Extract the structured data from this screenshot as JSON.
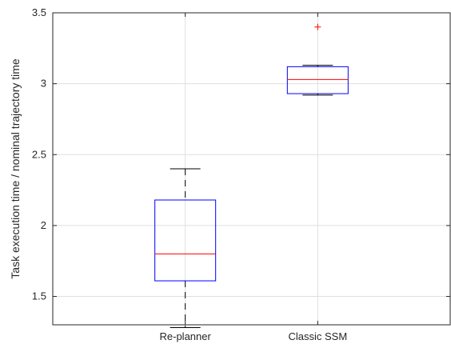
{
  "chart_data": {
    "type": "boxplot",
    "title": "",
    "xlabel": "",
    "ylabel": "Task execution time / nominal trajectory time",
    "categories": [
      "Re-planner",
      "Classic SSM"
    ],
    "ylim": [
      1.3,
      3.5
    ],
    "yticks": [
      "1.5",
      "2",
      "2.5",
      "3",
      "3.5"
    ],
    "grid": true,
    "boxes": [
      {
        "category": "Re-planner",
        "whisker_low": 1.28,
        "q1": 1.61,
        "median": 1.8,
        "q3": 2.18,
        "whisker_high": 2.4,
        "outliers": []
      },
      {
        "category": "Classic SSM",
        "whisker_low": 2.92,
        "q1": 2.93,
        "median": 3.03,
        "q3": 3.12,
        "whisker_high": 3.13,
        "outliers": [
          3.4
        ]
      }
    ],
    "colors": {
      "box": "#0000ff",
      "median": "#ff0000",
      "whisker": "#000000",
      "outlier": "#ff0000",
      "grid": "#dfdfdf",
      "axis": "#262626"
    }
  }
}
